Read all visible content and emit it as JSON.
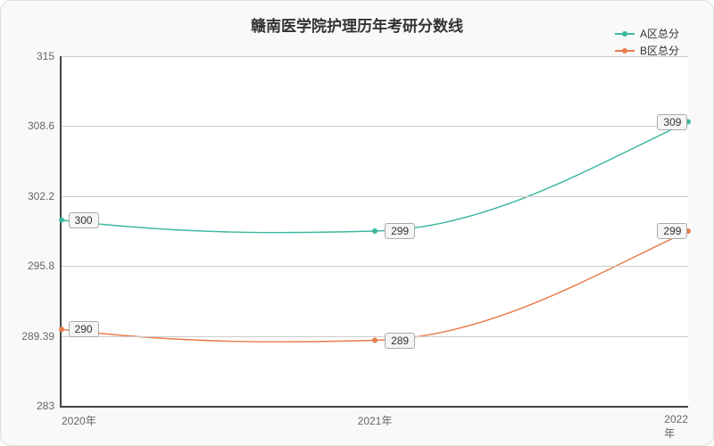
{
  "chart": {
    "type": "line",
    "title": "赣南医学院护理历年考研分数线",
    "title_fontsize": 17,
    "background_color": "#f9f9f9",
    "plot_background": "#ffffff",
    "grid_color": "#cccccc",
    "axis_color": "#444444",
    "xlabels": [
      "2020年",
      "2021年",
      "2022年"
    ],
    "ylim": [
      283,
      315
    ],
    "yticks": [
      283,
      289.39,
      295.8,
      302.2,
      308.6,
      315
    ],
    "ytick_labels": [
      "283",
      "289.39",
      "295.8",
      "302.2",
      "308.6",
      "315"
    ],
    "label_fontsize": 12,
    "series": [
      {
        "name": "A区总分",
        "color": "#3bb89f",
        "values": [
          300,
          299,
          309
        ],
        "labels": [
          "300",
          "299",
          "309"
        ],
        "line_width": 1.5,
        "smooth": true
      },
      {
        "name": "B区总分",
        "color": "#e87c4a",
        "values": [
          290,
          289,
          299
        ],
        "labels": [
          "290",
          "289",
          "299"
        ],
        "line_width": 1.5,
        "smooth": true
      }
    ],
    "legend_position": "top-right"
  }
}
